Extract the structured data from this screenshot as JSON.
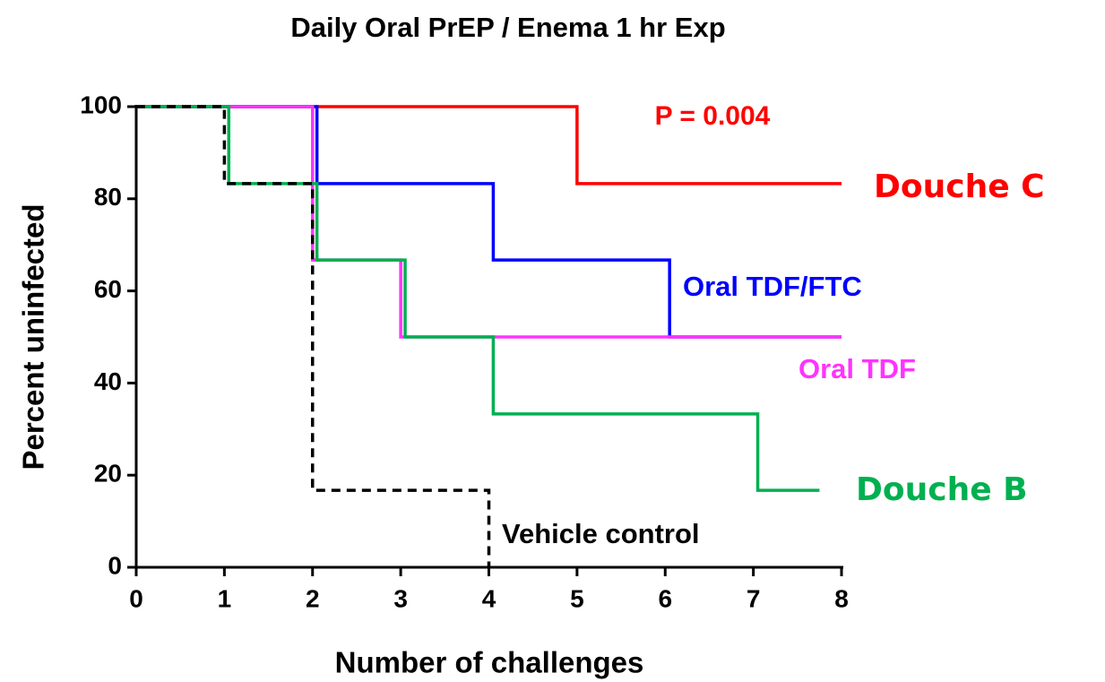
{
  "chart_data": {
    "type": "step",
    "title": "Daily Oral PrEP / Enema 1 hr Exp",
    "xlabel": "Number of challenges",
    "ylabel": "Percent uninfected",
    "xlim": [
      0,
      8
    ],
    "xticks": [
      0,
      1,
      2,
      3,
      4,
      5,
      6,
      7,
      8
    ],
    "ylim": [
      0,
      100
    ],
    "yticks": [
      0,
      20,
      40,
      60,
      80,
      100
    ],
    "annotations": [
      {
        "text": "P = 0.004",
        "color": "#ff0000"
      }
    ],
    "series": [
      {
        "name": "Douche  C",
        "color": "#ff0000",
        "x": [
          0,
          5,
          8
        ],
        "values": [
          100,
          83.3,
          83.3
        ]
      },
      {
        "name": "Oral TDF/FTC",
        "color": "#0000ff",
        "x": [
          0,
          2.05,
          4.05,
          6.05,
          8
        ],
        "values": [
          100,
          83.3,
          66.7,
          50,
          50
        ]
      },
      {
        "name": "Oral TDF",
        "color": "#ff33ff",
        "x": [
          0,
          2,
          3,
          8
        ],
        "values": [
          100,
          66.7,
          50,
          50
        ]
      },
      {
        "name": "Douche B",
        "color": "#00b050",
        "x": [
          0,
          1.05,
          2.05,
          3.05,
          4.05,
          7.05,
          7.75
        ],
        "values": [
          100,
          83.3,
          66.7,
          50,
          33.3,
          16.7,
          16.7
        ]
      },
      {
        "name": "Vehicle control",
        "color": "#000000",
        "dashed": true,
        "x": [
          0,
          1,
          2,
          4
        ],
        "values": [
          100,
          83.3,
          16.7,
          0
        ]
      }
    ]
  }
}
